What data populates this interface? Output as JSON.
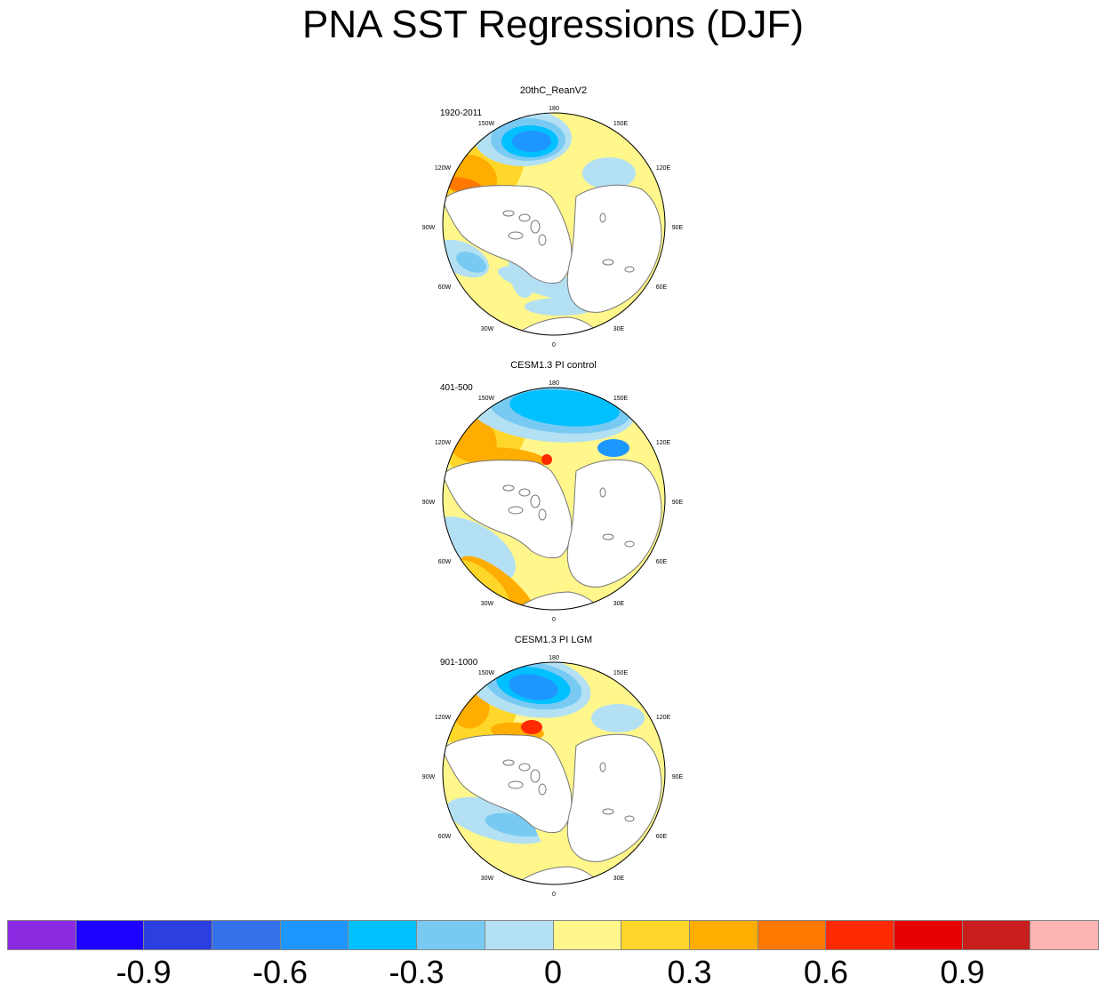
{
  "title": "PNA SST Regressions (DJF)",
  "panels": [
    {
      "title": "20thC_ReanV2",
      "period": "1920-2011",
      "variant": 0
    },
    {
      "title": "CESM1.3 PI control",
      "period": "401-500",
      "variant": 1
    },
    {
      "title": "CESM1.3 PI LGM",
      "period": "901-1000",
      "variant": 2
    }
  ],
  "longitude_labels": {
    "top": "180",
    "bottom": "0",
    "w150": "150W",
    "w120": "120W",
    "w90": "90W",
    "w60": "60W",
    "w30": "30W",
    "e150": "150E",
    "e120": "120E",
    "e90": "90E",
    "e60": "60E",
    "e30": "30E"
  },
  "colorbar": {
    "colors": [
      "#8a2be2",
      "#1e00ff",
      "#2c3fe0",
      "#3372e8",
      "#1e96ff",
      "#00c0ff",
      "#78caf2",
      "#b4e0f4",
      "#fff68c",
      "#ffd72a",
      "#ffad00",
      "#ff7800",
      "#ff2a00",
      "#e60000",
      "#c81e1e",
      "#ffb4b4"
    ],
    "labels": [
      "-0.9",
      "-0.6",
      "-0.3",
      "0",
      "0.3",
      "0.6",
      "0.9"
    ]
  }
}
